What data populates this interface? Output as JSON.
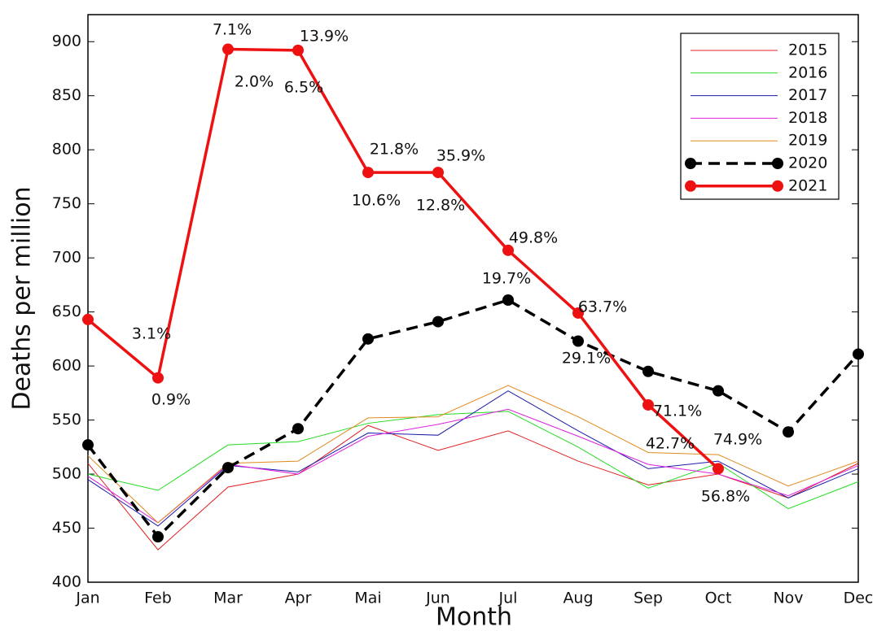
{
  "chart_data": {
    "type": "line",
    "xlabel": "Month",
    "ylabel": "Deaths per million",
    "categories": [
      "Jan",
      "Feb",
      "Mar",
      "Apr",
      "Mai",
      "Jun",
      "Jul",
      "Aug",
      "Sep",
      "Oct",
      "Nov",
      "Dec"
    ],
    "series": [
      {
        "name": "2015",
        "color": "#e02020",
        "values": [
          510,
          430,
          488,
          500,
          545,
          522,
          540,
          512,
          490,
          500,
          478,
          510
        ]
      },
      {
        "name": "2016",
        "color": "#22dd22",
        "values": [
          500,
          485,
          527,
          530,
          547,
          555,
          558,
          525,
          487,
          510,
          468,
          493
        ]
      },
      {
        "name": "2017",
        "color": "#1a1aaa",
        "values": [
          495,
          452,
          508,
          502,
          538,
          536,
          577,
          540,
          505,
          512,
          478,
          505
        ]
      },
      {
        "name": "2018",
        "color": "#dd22dd",
        "values": [
          498,
          455,
          509,
          500,
          535,
          546,
          560,
          535,
          509,
          500,
          480,
          508
        ]
      },
      {
        "name": "2019",
        "color": "#e08a1e",
        "values": [
          517,
          455,
          510,
          512,
          552,
          553,
          582,
          553,
          520,
          518,
          489,
          512
        ]
      },
      {
        "name": "2020",
        "color": "#000000",
        "dashed": true,
        "marker": true,
        "values": [
          527,
          442,
          506,
          542,
          625,
          641,
          661,
          623,
          595,
          577,
          539,
          611
        ]
      },
      {
        "name": "2021",
        "color": "#ee1111",
        "marker": true,
        "values": [
          643,
          589,
          893,
          892,
          779,
          779,
          707,
          649,
          564,
          505,
          null,
          null
        ]
      }
    ],
    "annotations": [
      "7.1%",
      "13.9%",
      "2.0%",
      "6.5%",
      "21.8%",
      "35.9%",
      "10.6%",
      "12.8%",
      "49.8%",
      "19.7%",
      "63.7%",
      "3.1%",
      "29.1%",
      "0.9%",
      "71.1%",
      "42.7%",
      "74.9%",
      "56.8%"
    ],
    "ylim": [
      400,
      925
    ],
    "yticks": [
      400,
      450,
      500,
      550,
      600,
      650,
      700,
      750,
      800,
      850,
      900
    ],
    "grid": false,
    "legend": "upper right"
  }
}
